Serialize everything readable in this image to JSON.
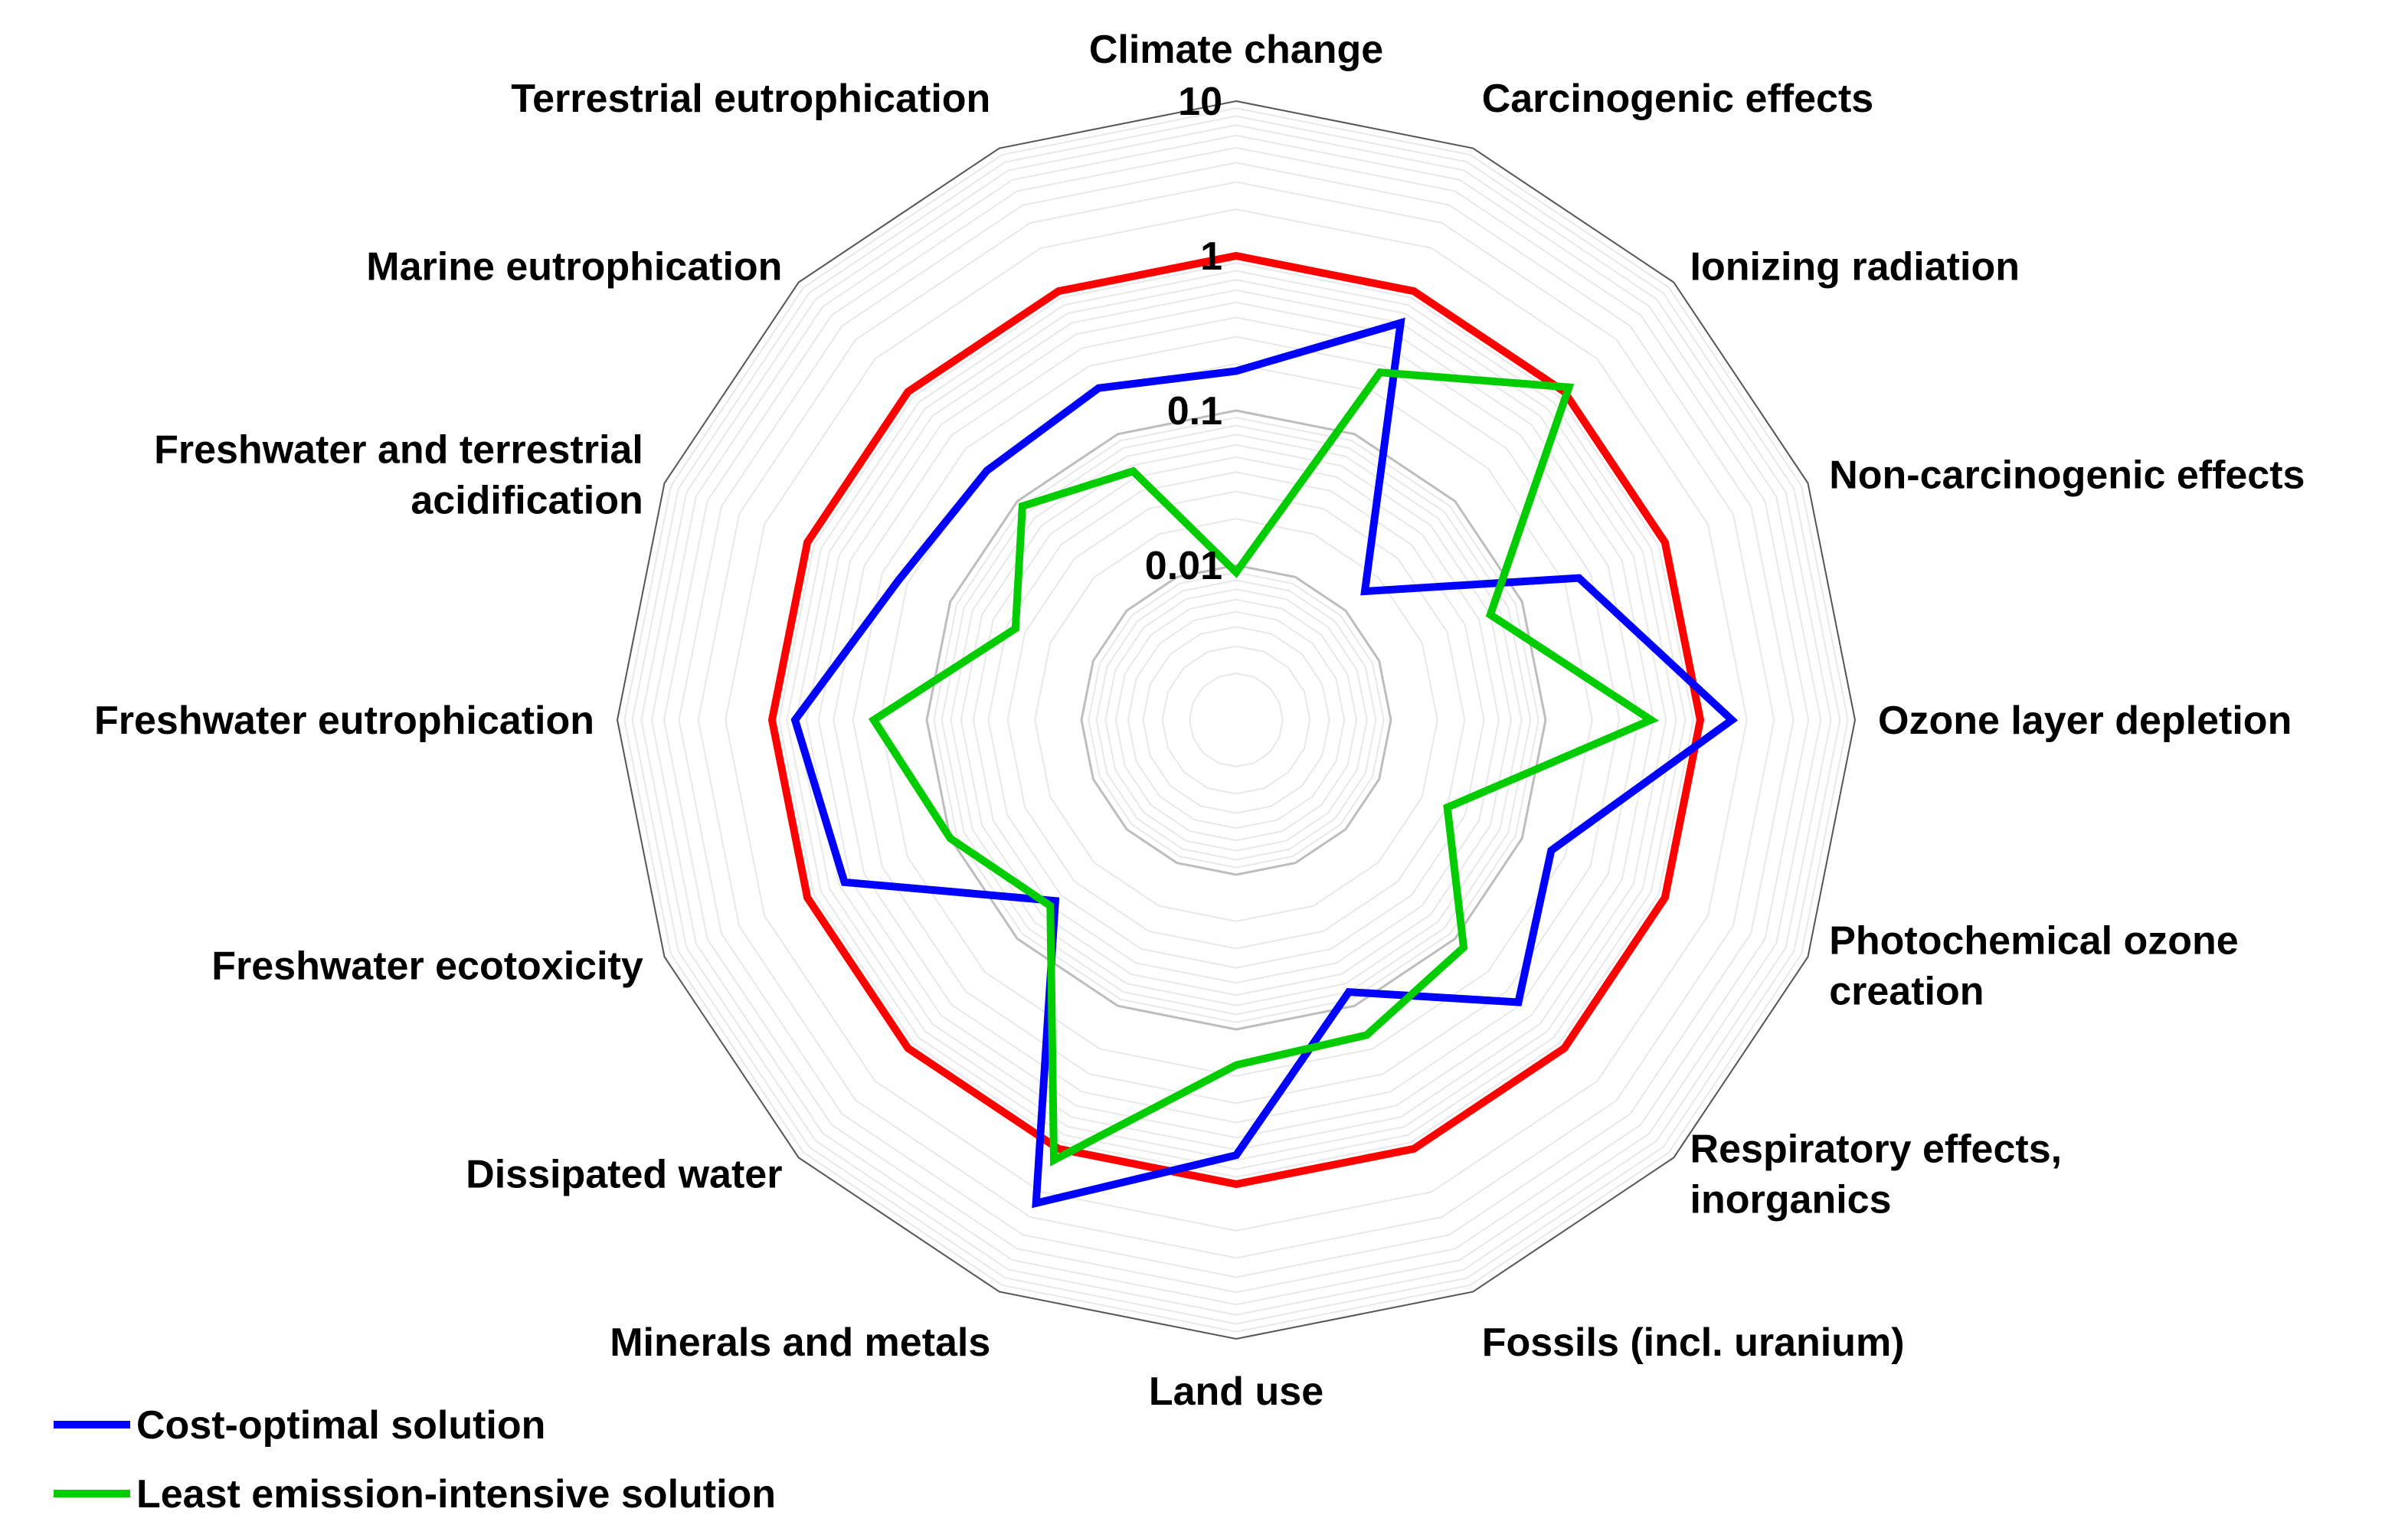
{
  "chart_data": {
    "type": "radar",
    "scale": "log",
    "rlim": [
      0.001,
      10
    ],
    "grid": true,
    "legend_position": "bottom-left",
    "categories": [
      [
        "Climate change"
      ],
      [
        "Carcinogenic effects"
      ],
      [
        "Ionizing radiation"
      ],
      [
        "Non-carcinogenic effects"
      ],
      [
        "Ozone layer depletion"
      ],
      [
        "Photochemical ozone",
        "creation"
      ],
      [
        "Respiratory effects,",
        "inorganics"
      ],
      [
        "Fossils (incl. uranium)"
      ],
      [
        "Land use"
      ],
      [
        "Minerals and metals"
      ],
      [
        "Dissipated water"
      ],
      [
        "Freshwater ecotoxicity"
      ],
      [
        "Freshwater eutrophication"
      ],
      [
        "Freshwater and terrestrial",
        "acidification"
      ],
      [
        "Marine eutrophication"
      ],
      [
        "Terrestrial eutrophication"
      ]
    ],
    "tick_labels": [
      "0.01",
      "0.1",
      "1",
      "10"
    ],
    "tick_values": [
      0.01,
      0.1,
      1,
      10
    ],
    "series": [
      {
        "name": "",
        "color": "#ff0000",
        "values": [
          1,
          1,
          1,
          1,
          1,
          1,
          1,
          1,
          1,
          1,
          1,
          1,
          1,
          1,
          1,
          1
        ]
      },
      {
        "name": "Cost-optimal solution",
        "color": "#0000ff",
        "values": [
          0.18,
          0.6,
          0.015,
          0.25,
          1.6,
          0.16,
          0.38,
          0.08,
          0.65,
          2.4,
          0.045,
          0.55,
          0.71,
          0.23,
          0.19,
          0.21
        ]
      },
      {
        "name": "Least emission-intensive solution",
        "color": "#00cc00",
        "values": [
          0.009,
          0.27,
          1.1,
          0.06,
          0.48,
          0.03,
          0.12,
          0.16,
          0.17,
          1.2,
          0.05,
          0.1,
          0.22,
          0.035,
          0.09,
          0.055
        ]
      }
    ]
  },
  "legend": {
    "items": [
      {
        "label": "Cost-optimal solution",
        "color": "#0000ff"
      },
      {
        "label": "Least emission-intensive solution",
        "color": "#00cc00"
      }
    ]
  }
}
